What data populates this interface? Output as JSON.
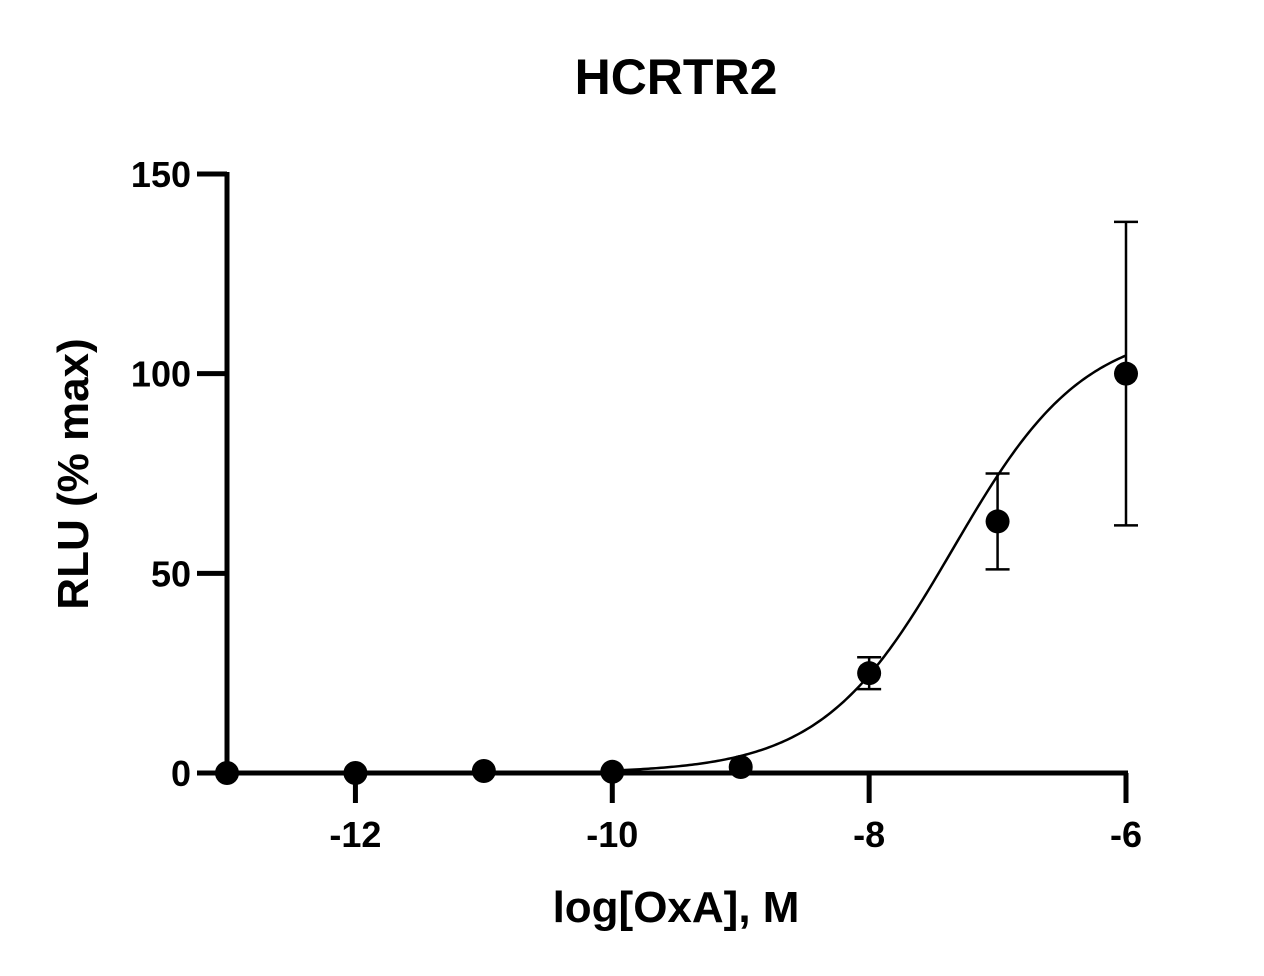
{
  "chart_data": {
    "type": "scatter",
    "title": "HCRTR2",
    "xlabel": "log[OxA], M",
    "ylabel": "RLU (% max)",
    "xlim": [
      -13,
      -6
    ],
    "ylim": [
      0,
      150
    ],
    "x_ticks": [
      -12,
      -10,
      -8,
      -6
    ],
    "y_ticks": [
      0,
      50,
      100,
      150
    ],
    "x_tick_labels": [
      "-12",
      "-10",
      "-8",
      "-6"
    ],
    "y_tick_labels": [
      "0",
      "50",
      "100",
      "150"
    ],
    "grid": false,
    "legend": "none",
    "series": [
      {
        "marker": "filled-circle",
        "color": "#000000",
        "points": [
          {
            "x": -13,
            "y": 0
          },
          {
            "x": -12,
            "y": 0
          },
          {
            "x": -11,
            "y": 0.5
          },
          {
            "x": -10,
            "y": 0.3
          },
          {
            "x": -9,
            "y": 1.5
          },
          {
            "x": -8,
            "y": 25,
            "err": 4
          },
          {
            "x": -7,
            "y": 63,
            "err": 12
          },
          {
            "x": -6,
            "y": 100,
            "err": 38
          }
        ]
      }
    ],
    "fit_curve": {
      "model": "sigmoidal dose-response",
      "bottom": 0,
      "top": 112,
      "log_ec50": -7.35,
      "hill_slope": 0.85,
      "x_range": [
        -10,
        -6
      ]
    }
  }
}
